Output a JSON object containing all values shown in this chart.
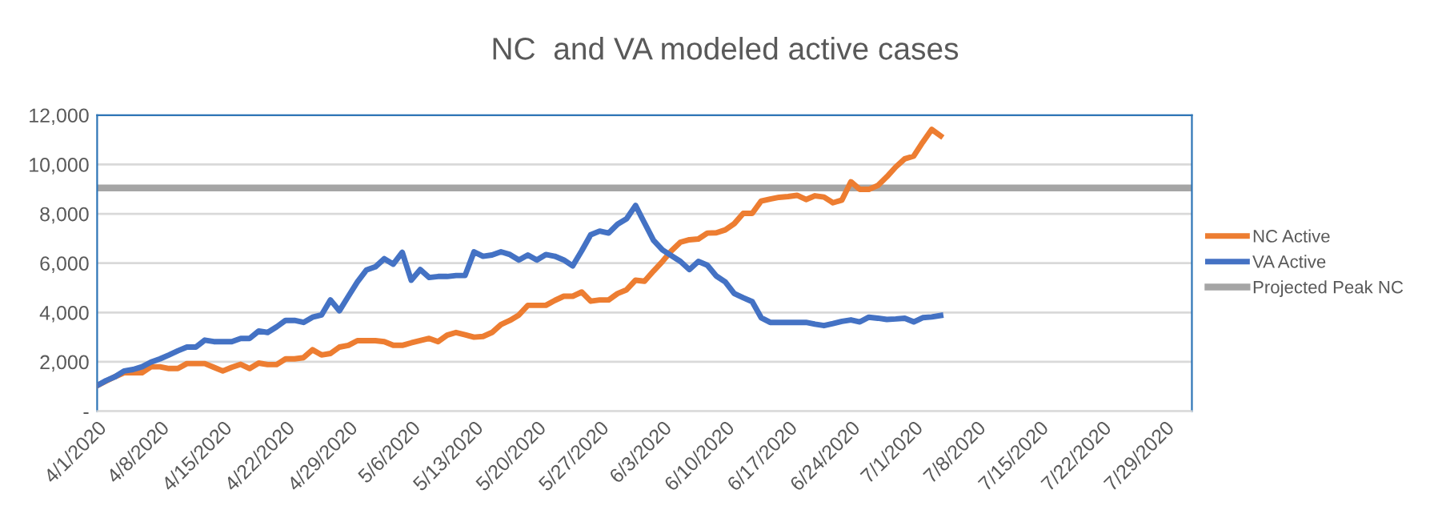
{
  "chart_data": {
    "type": "line",
    "title": "NC  and VA modeled active cases",
    "x": [
      "2020-04-01",
      "2020-04-02",
      "2020-04-03",
      "2020-04-04",
      "2020-04-05",
      "2020-04-06",
      "2020-04-07",
      "2020-04-08",
      "2020-04-09",
      "2020-04-10",
      "2020-04-11",
      "2020-04-12",
      "2020-04-13",
      "2020-04-14",
      "2020-04-15",
      "2020-04-16",
      "2020-04-17",
      "2020-04-18",
      "2020-04-19",
      "2020-04-20",
      "2020-04-21",
      "2020-04-22",
      "2020-04-23",
      "2020-04-24",
      "2020-04-25",
      "2020-04-26",
      "2020-04-27",
      "2020-04-28",
      "2020-04-29",
      "2020-04-30",
      "2020-05-01",
      "2020-05-02",
      "2020-05-03",
      "2020-05-04",
      "2020-05-05",
      "2020-05-06",
      "2020-05-07",
      "2020-05-08",
      "2020-05-09",
      "2020-05-10",
      "2020-05-11",
      "2020-05-12",
      "2020-05-13",
      "2020-05-14",
      "2020-05-15",
      "2020-05-16",
      "2020-05-17",
      "2020-05-18",
      "2020-05-19",
      "2020-05-20",
      "2020-05-21",
      "2020-05-22",
      "2020-05-23",
      "2020-05-24",
      "2020-05-25",
      "2020-05-26",
      "2020-05-27",
      "2020-05-28",
      "2020-05-29",
      "2020-05-30",
      "2020-05-31",
      "2020-06-01",
      "2020-06-02",
      "2020-06-03",
      "2020-06-04",
      "2020-06-05",
      "2020-06-06",
      "2020-06-07",
      "2020-06-08",
      "2020-06-09",
      "2020-06-10",
      "2020-06-11",
      "2020-06-12",
      "2020-06-13",
      "2020-06-14",
      "2020-06-15",
      "2020-06-16",
      "2020-06-17",
      "2020-06-18",
      "2020-06-19",
      "2020-06-20",
      "2020-06-21",
      "2020-06-22",
      "2020-06-23",
      "2020-06-24",
      "2020-06-25",
      "2020-06-26",
      "2020-06-27",
      "2020-06-28",
      "2020-06-29",
      "2020-06-30",
      "2020-07-01",
      "2020-07-02",
      "2020-07-03",
      "2020-07-04"
    ],
    "series": [
      {
        "name": "NC Active",
        "color": "#ed7d31",
        "values": [
          1040,
          1220,
          1400,
          1560,
          1560,
          1560,
          1800,
          1800,
          1730,
          1730,
          1930,
          1930,
          1930,
          1780,
          1630,
          1780,
          1900,
          1730,
          1950,
          1890,
          1890,
          2120,
          2120,
          2170,
          2490,
          2280,
          2340,
          2600,
          2670,
          2860,
          2860,
          2860,
          2820,
          2670,
          2670,
          2770,
          2860,
          2950,
          2820,
          3080,
          3190,
          3100,
          3000,
          3030,
          3190,
          3510,
          3680,
          3900,
          4290,
          4290,
          4290,
          4490,
          4660,
          4660,
          4830,
          4460,
          4510,
          4510,
          4770,
          4920,
          5310,
          5270,
          5680,
          6070,
          6500,
          6850,
          6950,
          6980,
          7220,
          7230,
          7350,
          7600,
          8020,
          8020,
          8520,
          8600,
          8670,
          8700,
          8750,
          8580,
          8730,
          8680,
          8450,
          8560,
          9300,
          8990,
          8990,
          9150,
          9500,
          9900,
          10230,
          10340,
          10900,
          11420,
          11160
        ]
      },
      {
        "name": "VA Active",
        "color": "#4472c4",
        "values": [
          1040,
          1240,
          1400,
          1630,
          1690,
          1800,
          1990,
          2120,
          2280,
          2450,
          2600,
          2600,
          2880,
          2820,
          2820,
          2820,
          2950,
          2950,
          3250,
          3190,
          3420,
          3680,
          3680,
          3600,
          3810,
          3900,
          4510,
          4070,
          4660,
          5240,
          5720,
          5850,
          6180,
          5960,
          6440,
          5310,
          5740,
          5420,
          5460,
          5460,
          5500,
          5500,
          6460,
          6280,
          6330,
          6460,
          6350,
          6130,
          6330,
          6130,
          6350,
          6280,
          6130,
          5890,
          6500,
          7150,
          7300,
          7220,
          7580,
          7800,
          8340,
          7630,
          6930,
          6540,
          6300,
          6070,
          5740,
          6070,
          5920,
          5480,
          5240,
          4770,
          4600,
          4440,
          3790,
          3600,
          3600,
          3600,
          3600,
          3600,
          3530,
          3470,
          3550,
          3640,
          3700,
          3620,
          3810,
          3770,
          3720,
          3740,
          3770,
          3620,
          3790,
          3820,
          3880
        ]
      }
    ],
    "ref_lines": [
      {
        "axis": "y",
        "value": 9050,
        "label": "Projected Peak NC",
        "color": "#a5a5a5"
      }
    ],
    "xlim": [
      "2020-04-01",
      "2020-08-01"
    ],
    "xticks": [
      {
        "value": "2020-04-01",
        "label": "4/1/2020"
      },
      {
        "value": "2020-04-08",
        "label": "4/8/2020"
      },
      {
        "value": "2020-04-15",
        "label": "4/15/2020"
      },
      {
        "value": "2020-04-22",
        "label": "4/22/2020"
      },
      {
        "value": "2020-04-29",
        "label": "4/29/2020"
      },
      {
        "value": "2020-05-06",
        "label": "5/6/2020"
      },
      {
        "value": "2020-05-13",
        "label": "5/13/2020"
      },
      {
        "value": "2020-05-20",
        "label": "5/20/2020"
      },
      {
        "value": "2020-05-27",
        "label": "5/27/2020"
      },
      {
        "value": "2020-06-03",
        "label": "6/3/2020"
      },
      {
        "value": "2020-06-10",
        "label": "6/10/2020"
      },
      {
        "value": "2020-06-17",
        "label": "6/17/2020"
      },
      {
        "value": "2020-06-24",
        "label": "6/24/2020"
      },
      {
        "value": "2020-07-01",
        "label": "7/1/2020"
      },
      {
        "value": "2020-07-08",
        "label": "7/8/2020"
      },
      {
        "value": "2020-07-15",
        "label": "7/15/2020"
      },
      {
        "value": "2020-07-22",
        "label": "7/22/2020"
      },
      {
        "value": "2020-07-29",
        "label": "7/29/2020"
      }
    ],
    "ylim": [
      0,
      12000
    ],
    "yticks": [
      {
        "value": 0,
        "label": "-"
      },
      {
        "value": 2000,
        "label": "2,000"
      },
      {
        "value": 4000,
        "label": "4,000"
      },
      {
        "value": 6000,
        "label": "6,000"
      },
      {
        "value": 8000,
        "label": "8,000"
      },
      {
        "value": 10000,
        "label": "10,000"
      },
      {
        "value": 12000,
        "label": "12,000"
      }
    ],
    "grid": "y",
    "legend": "right",
    "line_style": "solid",
    "marker": "none"
  }
}
